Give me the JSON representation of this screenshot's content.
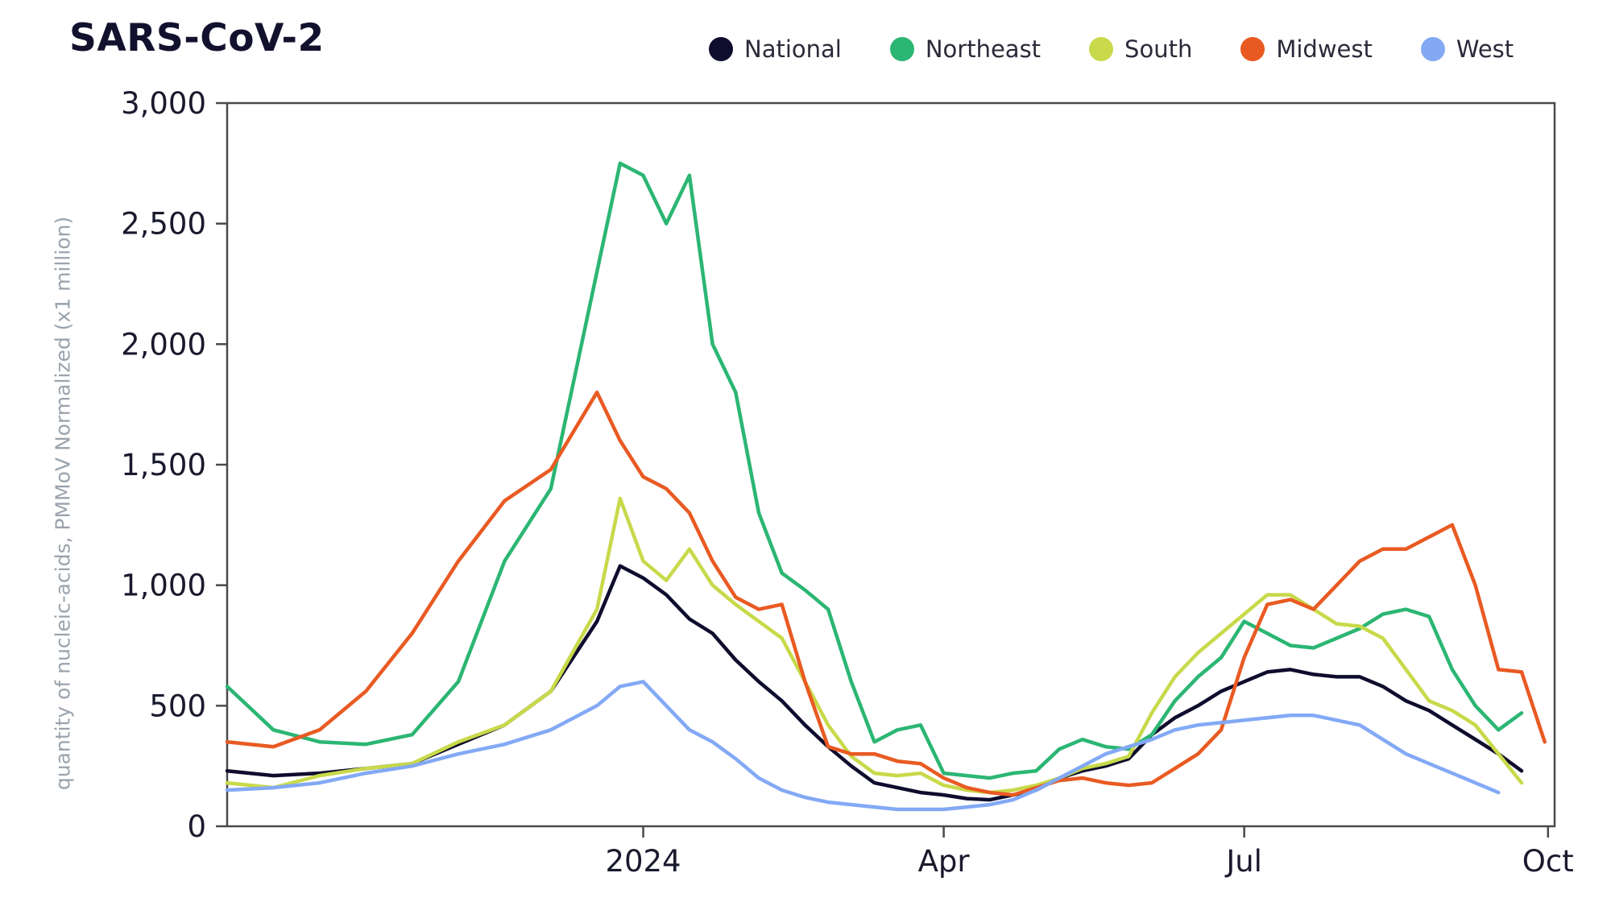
{
  "chart_data": {
    "type": "line",
    "title": "SARS-CoV-2",
    "ylabel": "quantity of nucleic-acids, PMMoV Normalized (x1 million)",
    "xlabel": "",
    "ylim": [
      0,
      3000
    ],
    "yticks": [
      0,
      500,
      1000,
      1500,
      2000,
      2500,
      3000
    ],
    "ytick_labels": [
      "0",
      "500",
      "1,000",
      "1,500",
      "2,000",
      "2,500",
      "3,000"
    ],
    "xlim_days": [
      -126,
      276
    ],
    "x_axis_note": "x values are days relative to 2024-01-01",
    "xticks": [
      {
        "label": "2024",
        "day": 0
      },
      {
        "label": "Apr",
        "day": 91
      },
      {
        "label": "Jul",
        "day": 182
      },
      {
        "label": "Oct",
        "day": 274
      }
    ],
    "legend_position": "top",
    "x": [
      -126,
      -112,
      -98,
      -84,
      -70,
      -56,
      -42,
      -28,
      -14,
      -7,
      0,
      7,
      14,
      21,
      28,
      35,
      42,
      49,
      56,
      63,
      70,
      77,
      84,
      91,
      98,
      105,
      112,
      119,
      126,
      133,
      140,
      147,
      154,
      161,
      168,
      175,
      182,
      189,
      196,
      203,
      210,
      217,
      224,
      231,
      238,
      245,
      252,
      259,
      266,
      273
    ],
    "series": [
      {
        "name": "National",
        "color": "#0f0d2e",
        "values": [
          230,
          210,
          220,
          240,
          260,
          340,
          420,
          560,
          850,
          1080,
          1030,
          960,
          860,
          800,
          690,
          600,
          520,
          420,
          330,
          250,
          180,
          160,
          140,
          130,
          115,
          110,
          130,
          150,
          200,
          230,
          250,
          280,
          380,
          450,
          500,
          560,
          600,
          640,
          650,
          630,
          620,
          620,
          580,
          520,
          480,
          420,
          360,
          300,
          230,
          null
        ]
      },
      {
        "name": "Northeast",
        "color": "#2bb673",
        "values": [
          580,
          400,
          350,
          340,
          380,
          600,
          1100,
          1400,
          2300,
          2750,
          2700,
          2500,
          2700,
          2000,
          1800,
          1300,
          1050,
          980,
          900,
          600,
          350,
          400,
          420,
          220,
          210,
          200,
          220,
          230,
          320,
          360,
          330,
          320,
          380,
          520,
          620,
          700,
          850,
          800,
          750,
          740,
          780,
          820,
          880,
          900,
          870,
          650,
          500,
          400,
          470,
          null
        ]
      },
      {
        "name": "South",
        "color": "#c8d94a",
        "values": [
          180,
          160,
          210,
          240,
          260,
          350,
          420,
          560,
          900,
          1360,
          1100,
          1020,
          1150,
          1000,
          920,
          850,
          780,
          600,
          420,
          290,
          220,
          210,
          220,
          170,
          150,
          140,
          150,
          170,
          200,
          240,
          260,
          290,
          470,
          620,
          720,
          800,
          880,
          960,
          960,
          900,
          840,
          830,
          780,
          650,
          520,
          480,
          420,
          300,
          180,
          null
        ]
      },
      {
        "name": "Midwest",
        "color": "#e95a22",
        "values": [
          350,
          330,
          400,
          560,
          800,
          1100,
          1350,
          1480,
          1800,
          1600,
          1450,
          1400,
          1300,
          1100,
          950,
          900,
          920,
          600,
          330,
          300,
          300,
          270,
          260,
          200,
          160,
          140,
          130,
          160,
          190,
          200,
          180,
          170,
          180,
          240,
          300,
          400,
          700,
          920,
          940,
          900,
          1000,
          1100,
          1150,
          1150,
          1200,
          1250,
          1000,
          650,
          640,
          350
        ]
      },
      {
        "name": "West",
        "color": "#83a9f5",
        "values": [
          150,
          160,
          180,
          220,
          250,
          300,
          340,
          400,
          500,
          580,
          600,
          500,
          400,
          350,
          280,
          200,
          150,
          120,
          100,
          90,
          80,
          70,
          70,
          70,
          80,
          90,
          110,
          150,
          200,
          250,
          300,
          330,
          360,
          400,
          420,
          430,
          440,
          450,
          460,
          460,
          440,
          420,
          360,
          300,
          260,
          220,
          180,
          140,
          null,
          null
        ]
      }
    ]
  }
}
